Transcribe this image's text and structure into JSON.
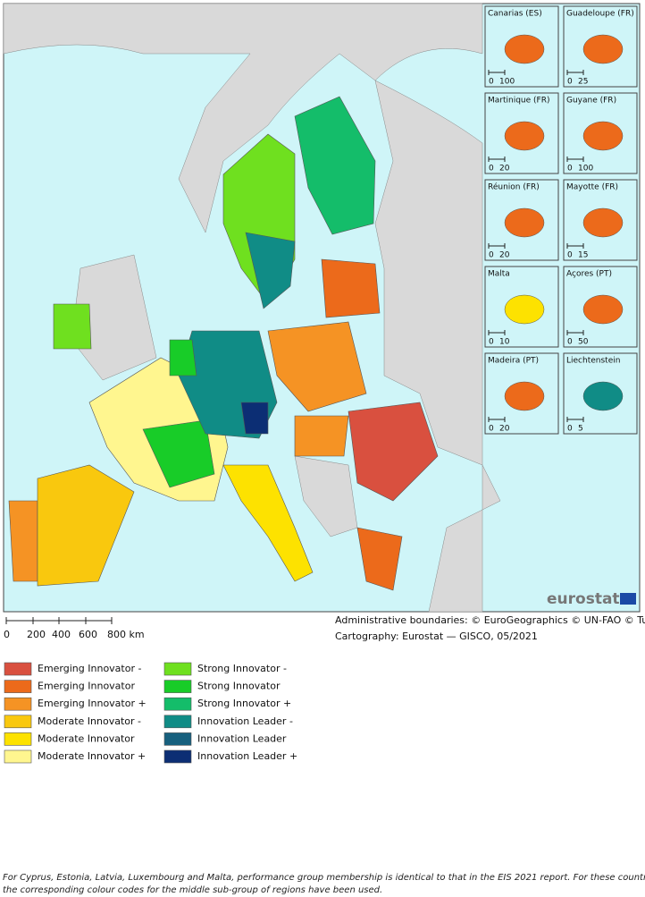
{
  "map": {
    "insets": [
      {
        "label": "Canarias (ES)",
        "scale": [
          "0",
          "100"
        ]
      },
      {
        "label": "Guadeloupe (FR)",
        "scale": [
          "0",
          "25"
        ]
      },
      {
        "label": "Martinique (FR)",
        "scale": [
          "0",
          "20"
        ]
      },
      {
        "label": "Guyane (FR)",
        "scale": [
          "0",
          "100"
        ]
      },
      {
        "label": "Réunion (FR)",
        "scale": [
          "0",
          "20"
        ]
      },
      {
        "label": "Mayotte (FR)",
        "scale": [
          "0",
          "15"
        ]
      },
      {
        "label": "Malta",
        "scale": [
          "0",
          "10"
        ]
      },
      {
        "label": "Açores (PT)",
        "scale": [
          "0",
          "50"
        ]
      },
      {
        "label": "Madeira (PT)",
        "scale": [
          "0",
          "20"
        ]
      },
      {
        "label": "Liechtenstein",
        "scale": [
          "0",
          "5"
        ]
      }
    ],
    "logo": "eurostat",
    "scale_bar": [
      "0",
      "200",
      "400",
      "600",
      "800 km"
    ],
    "credits": [
      "Administrative boundaries: © EuroGeographics © UN-FAO © Turkstat",
      "Cartography: Eurostat — GISCO, 05/2021"
    ]
  },
  "legend": [
    {
      "label": "Emerging Innovator -",
      "color": "#d9503f"
    },
    {
      "label": "Emerging Innovator",
      "color": "#ec6a1b"
    },
    {
      "label": "Emerging Innovator +",
      "color": "#f59324"
    },
    {
      "label": "Moderate Innovator -",
      "color": "#f9c80e"
    },
    {
      "label": "Moderate Innovator",
      "color": "#fde200"
    },
    {
      "label": "Moderate Innovator +",
      "color": "#fff68f"
    },
    {
      "label": "Strong Innovator -",
      "color": "#6fe01f"
    },
    {
      "label": "Strong Innovator",
      "color": "#18cc28"
    },
    {
      "label": "Strong Innovator +",
      "color": "#14bd6a"
    },
    {
      "label": "Innovation Leader -",
      "color": "#108c86"
    },
    {
      "label": "Innovation Leader",
      "color": "#17607e"
    },
    {
      "label": "Innovation Leader +",
      "color": "#0c2e74"
    }
  ],
  "footnote": [
    "For Cyprus, Estonia, Latvia, Luxembourg and Malta, performance group membership is identical to that in the EIS 2021 report. For these countries,",
    "the corresponding colour codes for the middle sub-group of regions have been used."
  ]
}
